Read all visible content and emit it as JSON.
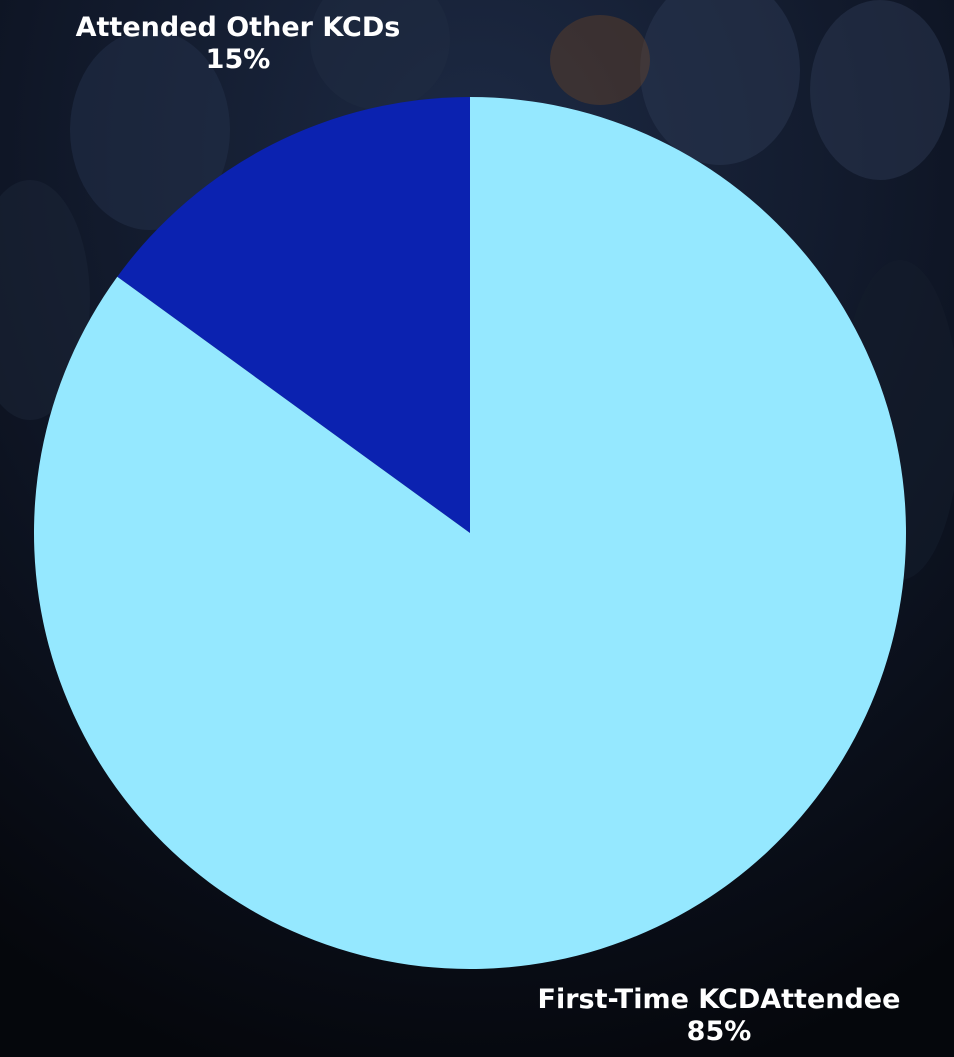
{
  "chart_data": {
    "type": "pie",
    "slices": [
      {
        "label": "Attended Other KCDs",
        "value": 15,
        "value_label": "15%",
        "color": "#0b22b0"
      },
      {
        "label": "First-Time KCDAttendee",
        "value": 85,
        "value_label": "85%",
        "color": "#95e8ff"
      }
    ],
    "start_angle": "12 o'clock",
    "direction": "counterclockwise",
    "legend": "none",
    "background": "dark photo of seated audience"
  }
}
